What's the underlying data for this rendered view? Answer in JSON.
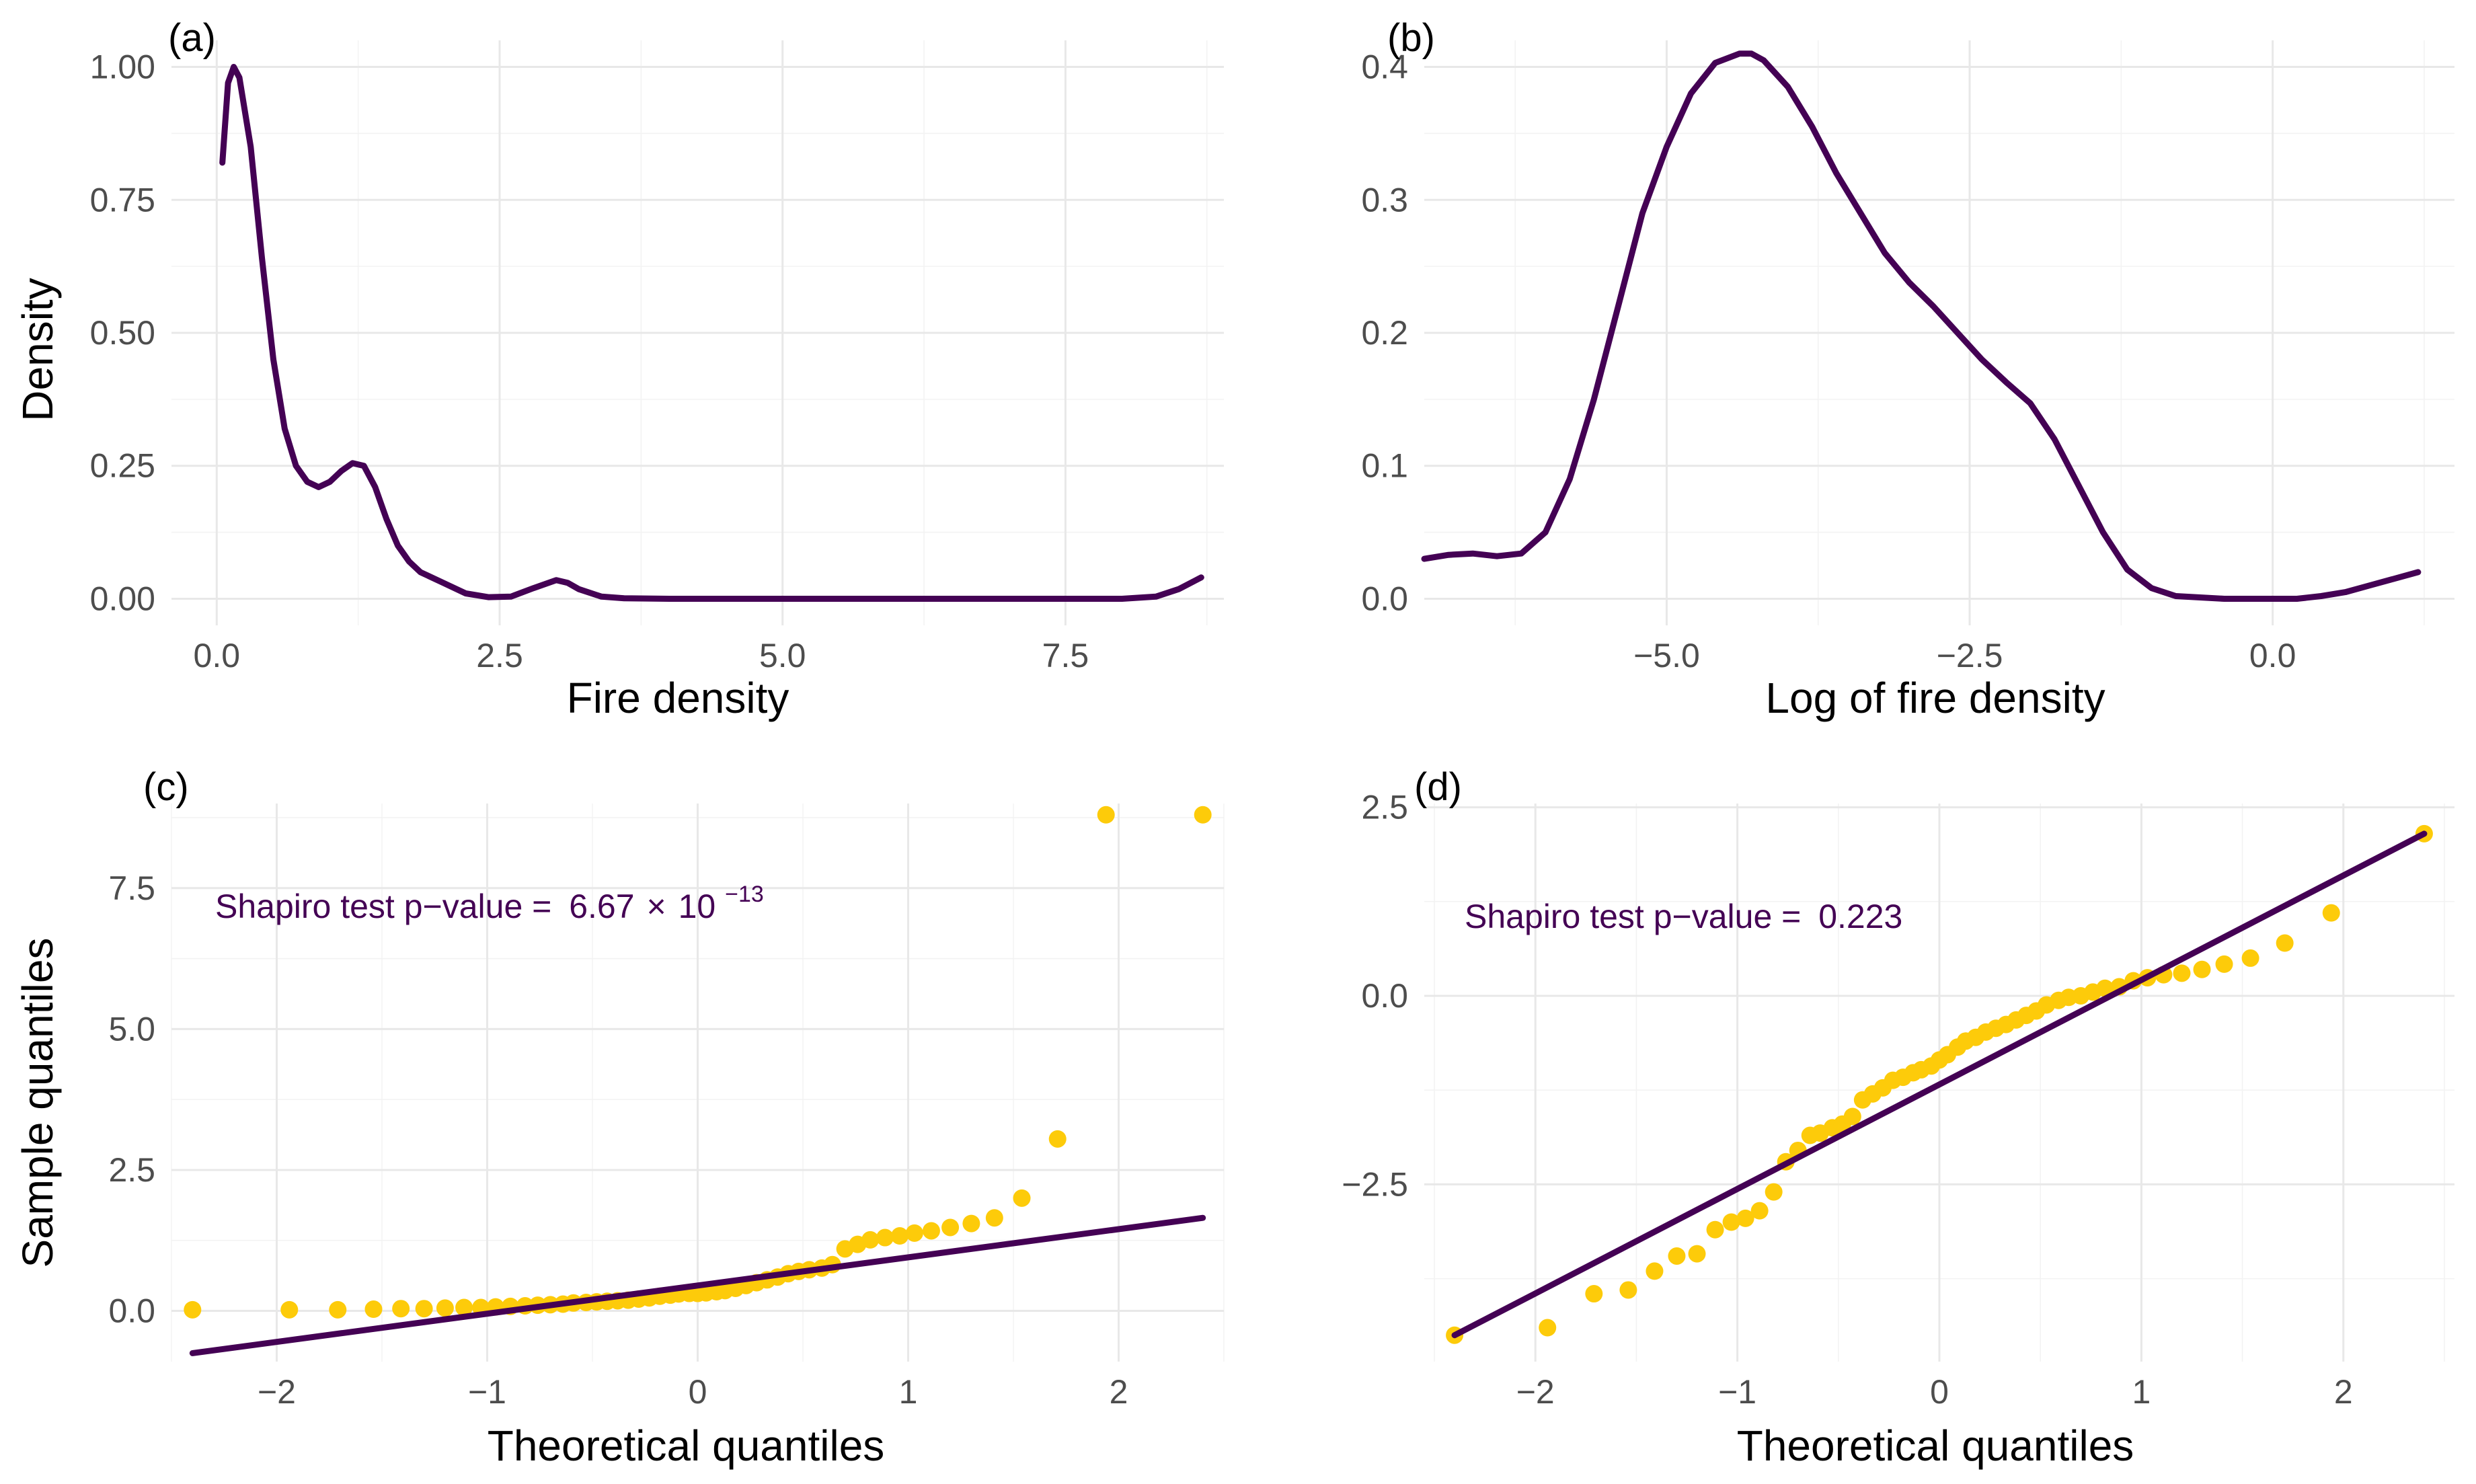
{
  "colors": {
    "line": "#440154",
    "points": "#FDCB0A",
    "text_annotation": "#440154"
  },
  "chart_data": [
    {
      "id": "a",
      "panel_label": "(a)",
      "type": "line",
      "xlabel": "Fire density",
      "ylabel": "Density",
      "xlim": [
        -0.4,
        8.9
      ],
      "ylim": [
        -0.05,
        1.05
      ],
      "xticks": [
        0.0,
        2.5,
        5.0,
        7.5
      ],
      "xtick_labels": [
        "0.0",
        "2.5",
        "5.0",
        "7.5"
      ],
      "yticks": [
        0.0,
        0.25,
        0.5,
        0.75,
        1.0
      ],
      "ytick_labels": [
        "0.00",
        "0.25",
        "0.50",
        "0.75",
        "1.00"
      ],
      "series": [
        {
          "name": "density",
          "x": [
            0.05,
            0.1,
            0.15,
            0.2,
            0.3,
            0.4,
            0.5,
            0.6,
            0.7,
            0.8,
            0.9,
            1.0,
            1.1,
            1.2,
            1.3,
            1.4,
            1.5,
            1.6,
            1.7,
            1.8,
            2.0,
            2.2,
            2.4,
            2.6,
            2.8,
            3.0,
            3.1,
            3.2,
            3.4,
            3.6,
            4.0,
            5.0,
            6.0,
            7.0,
            8.0,
            8.3,
            8.5,
            8.7
          ],
          "y": [
            0.82,
            0.97,
            1.0,
            0.98,
            0.85,
            0.64,
            0.45,
            0.32,
            0.25,
            0.22,
            0.21,
            0.22,
            0.24,
            0.255,
            0.25,
            0.21,
            0.15,
            0.1,
            0.07,
            0.05,
            0.03,
            0.01,
            0.003,
            0.004,
            0.02,
            0.035,
            0.03,
            0.018,
            0.004,
            0.001,
            0.0,
            0.0,
            0.0,
            0.0,
            0.0,
            0.004,
            0.018,
            0.04
          ]
        }
      ]
    },
    {
      "id": "b",
      "panel_label": "(b)",
      "type": "line",
      "xlabel": "Log of fire density",
      "ylabel": "",
      "xlim": [
        -7.0,
        1.5
      ],
      "ylim": [
        -0.02,
        0.42
      ],
      "xticks": [
        -5.0,
        -2.5,
        0.0
      ],
      "xtick_labels": [
        "−5.0",
        "−2.5",
        "0.0"
      ],
      "yticks": [
        0.0,
        0.1,
        0.2,
        0.3,
        0.4
      ],
      "ytick_labels": [
        "0.0",
        "0.1",
        "0.2",
        "0.3",
        "0.4"
      ],
      "series": [
        {
          "name": "density",
          "x": [
            -7.0,
            -6.8,
            -6.6,
            -6.4,
            -6.2,
            -6.0,
            -5.8,
            -5.6,
            -5.4,
            -5.2,
            -5.0,
            -4.8,
            -4.6,
            -4.4,
            -4.3,
            -4.2,
            -4.0,
            -3.8,
            -3.6,
            -3.4,
            -3.2,
            -3.0,
            -2.8,
            -2.6,
            -2.4,
            -2.2,
            -2.0,
            -1.8,
            -1.6,
            -1.4,
            -1.2,
            -1.0,
            -0.8,
            -0.6,
            -0.4,
            -0.2,
            0.0,
            0.2,
            0.4,
            0.6,
            0.8,
            1.0,
            1.2
          ],
          "y": [
            0.03,
            0.033,
            0.034,
            0.032,
            0.034,
            0.05,
            0.09,
            0.15,
            0.22,
            0.29,
            0.34,
            0.38,
            0.403,
            0.41,
            0.41,
            0.405,
            0.385,
            0.355,
            0.32,
            0.29,
            0.26,
            0.238,
            0.22,
            0.2,
            0.18,
            0.163,
            0.147,
            0.12,
            0.085,
            0.05,
            0.022,
            0.008,
            0.002,
            0.001,
            0.0,
            0.0,
            0.0,
            0.0,
            0.002,
            0.005,
            0.01,
            0.015,
            0.02
          ]
        }
      ]
    },
    {
      "id": "c",
      "panel_label": "(c)",
      "type": "scatter",
      "xlabel": "Theoretical quantiles",
      "ylabel": "Sample quantiles",
      "xlim": [
        -2.5,
        2.5
      ],
      "ylim": [
        -0.9,
        9.0
      ],
      "xticks": [
        -2,
        -1,
        0,
        1,
        2
      ],
      "xtick_labels": [
        "−2",
        "−1",
        "0",
        "1",
        "2"
      ],
      "yticks": [
        0.0,
        2.5,
        5.0,
        7.5
      ],
      "ytick_labels": [
        "0.0",
        "2.5",
        "5.0",
        "7.5"
      ],
      "annotation": {
        "prefix": "Shapiro test p−value = ",
        "mantissa": "6.67",
        "times": "×",
        "base": "10",
        "exponent": "−13"
      },
      "reference_line": {
        "x": [
          -2.4,
          2.4
        ],
        "y": [
          -0.75,
          1.65
        ]
      },
      "points": {
        "x": [
          -2.4,
          -1.94,
          -1.71,
          -1.54,
          -1.41,
          -1.3,
          -1.2,
          -1.11,
          -1.03,
          -0.96,
          -0.89,
          -0.82,
          -0.76,
          -0.7,
          -0.64,
          -0.59,
          -0.53,
          -0.48,
          -0.43,
          -0.38,
          -0.33,
          -0.28,
          -0.23,
          -0.18,
          -0.13,
          -0.09,
          -0.04,
          0.0,
          0.04,
          0.09,
          0.13,
          0.18,
          0.23,
          0.28,
          0.33,
          0.38,
          0.43,
          0.48,
          0.53,
          0.59,
          0.64,
          0.7,
          0.76,
          0.82,
          0.89,
          0.96,
          1.03,
          1.11,
          1.2,
          1.3,
          1.41,
          1.54,
          1.71,
          1.94,
          2.4
        ],
        "y": [
          0.02,
          0.02,
          0.02,
          0.03,
          0.04,
          0.04,
          0.05,
          0.06,
          0.06,
          0.07,
          0.08,
          0.09,
          0.1,
          0.11,
          0.12,
          0.14,
          0.15,
          0.16,
          0.17,
          0.18,
          0.19,
          0.21,
          0.23,
          0.26,
          0.28,
          0.3,
          0.31,
          0.31,
          0.32,
          0.34,
          0.36,
          0.4,
          0.45,
          0.5,
          0.55,
          0.6,
          0.66,
          0.7,
          0.73,
          0.76,
          0.82,
          1.1,
          1.18,
          1.26,
          1.3,
          1.33,
          1.38,
          1.42,
          1.48,
          1.55,
          1.65,
          2.0,
          3.05,
          8.8,
          8.8
        ]
      }
    },
    {
      "id": "d",
      "panel_label": "(d)",
      "type": "scatter",
      "xlabel": "Theoretical quantiles",
      "ylabel": "",
      "xlim": [
        -2.55,
        2.55
      ],
      "ylim": [
        -4.85,
        2.55
      ],
      "xticks": [
        -2,
        -1,
        0,
        1,
        2
      ],
      "xtick_labels": [
        "−2",
        "−1",
        "0",
        "1",
        "2"
      ],
      "yticks": [
        -2.5,
        0.0,
        2.5
      ],
      "ytick_labels": [
        "−2.5",
        "0.0",
        "2.5"
      ],
      "annotation": {
        "prefix": "Shapiro test p−value = ",
        "value": "0.223"
      },
      "reference_line": {
        "x": [
          -2.4,
          2.4
        ],
        "y": [
          -4.5,
          2.15
        ]
      },
      "points": {
        "x": [
          -2.4,
          -1.94,
          -1.71,
          -1.54,
          -1.41,
          -1.3,
          -1.2,
          -1.11,
          -1.03,
          -0.96,
          -0.89,
          -0.82,
          -0.76,
          -0.7,
          -0.64,
          -0.59,
          -0.53,
          -0.48,
          -0.43,
          -0.38,
          -0.33,
          -0.28,
          -0.23,
          -0.18,
          -0.13,
          -0.09,
          -0.04,
          0.0,
          0.04,
          0.09,
          0.13,
          0.18,
          0.23,
          0.28,
          0.33,
          0.38,
          0.43,
          0.48,
          0.53,
          0.59,
          0.64,
          0.7,
          0.76,
          0.82,
          0.89,
          0.96,
          1.03,
          1.11,
          1.2,
          1.3,
          1.41,
          1.54,
          1.71,
          1.94,
          2.4
        ],
        "y": [
          -4.5,
          -4.4,
          -3.95,
          -3.9,
          -3.65,
          -3.45,
          -3.42,
          -3.1,
          -3.0,
          -2.95,
          -2.85,
          -2.6,
          -2.2,
          -2.05,
          -1.85,
          -1.82,
          -1.75,
          -1.7,
          -1.6,
          -1.38,
          -1.3,
          -1.22,
          -1.12,
          -1.08,
          -1.02,
          -0.98,
          -0.93,
          -0.85,
          -0.78,
          -0.68,
          -0.6,
          -0.55,
          -0.48,
          -0.43,
          -0.38,
          -0.32,
          -0.26,
          -0.2,
          -0.12,
          -0.06,
          -0.02,
          0.0,
          0.05,
          0.1,
          0.12,
          0.2,
          0.24,
          0.28,
          0.3,
          0.35,
          0.42,
          0.5,
          0.7,
          1.1,
          2.15
        ]
      }
    }
  ]
}
